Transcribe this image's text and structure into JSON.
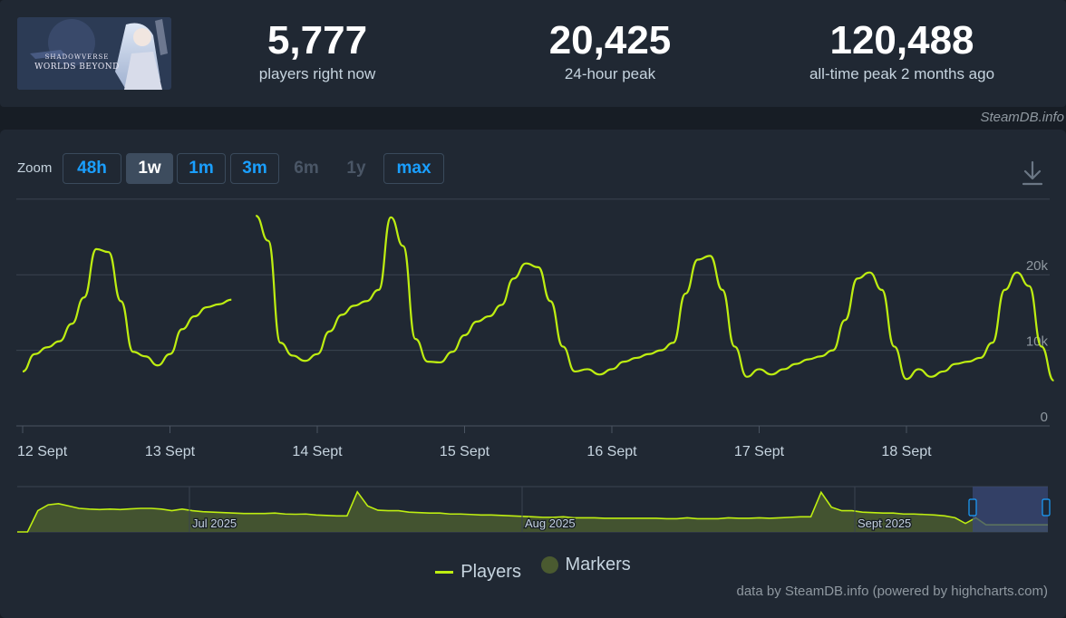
{
  "game": {
    "logo_line1": "SHADOWVERSE",
    "logo_line2": "WORLDS BEYOND"
  },
  "stats": [
    {
      "value": "5,777",
      "label": "players right now"
    },
    {
      "value": "20,425",
      "label": "24-hour peak"
    },
    {
      "value": "120,488",
      "label": "all-time peak 2 months ago"
    }
  ],
  "credit_top": "SteamDB.info",
  "zoom": {
    "label": "Zoom",
    "buttons": [
      {
        "label": "48h",
        "state": "normal"
      },
      {
        "label": "1w",
        "state": "active"
      },
      {
        "label": "1m",
        "state": "normal"
      },
      {
        "label": "3m",
        "state": "normal"
      },
      {
        "label": "6m",
        "state": "disabled"
      },
      {
        "label": "1y",
        "state": "disabled"
      },
      {
        "label": "max",
        "state": "normal"
      }
    ]
  },
  "legend": {
    "players": "Players",
    "markers": "Markers"
  },
  "credit_bottom": "data by SteamDB.info (powered by highcharts.com)",
  "colors": {
    "line": "#beee11",
    "nav_fill": "#4a5a30",
    "grid": "#3a4350",
    "selection": "#3a4878"
  },
  "chart_data": [
    {
      "type": "line",
      "series": [
        {
          "name": "Players",
          "x_days": [
            0,
            0.083,
            0.167,
            0.25,
            0.333,
            0.417,
            0.5,
            0.583,
            0.667,
            0.75,
            0.833,
            0.917,
            1,
            1.083,
            1.167,
            1.25,
            1.333,
            1.417,
            1.5,
            1.583,
            1.667,
            1.75,
            1.833,
            1.917,
            2,
            2.083,
            2.167,
            2.25,
            2.333,
            2.417,
            2.5,
            2.583,
            2.667,
            2.75,
            2.833,
            2.917,
            3,
            3.083,
            3.167,
            3.25,
            3.333,
            3.417,
            3.5,
            3.583,
            3.667,
            3.75,
            3.833,
            3.917,
            4,
            4.083,
            4.167,
            4.25,
            4.333,
            4.417,
            4.5,
            4.583,
            4.667,
            4.75,
            4.833,
            4.917,
            5,
            5.083,
            5.167,
            5.25,
            5.333,
            5.417,
            5.5,
            5.583,
            5.667,
            5.75,
            5.833,
            5.917,
            6,
            6.083,
            6.167,
            6.25,
            6.333,
            6.417,
            6.5,
            6.583,
            6.667,
            6.75,
            6.833,
            6.917,
            7
          ],
          "values": [
            7200,
            9500,
            10400,
            11200,
            13500,
            17000,
            23400,
            23000,
            16500,
            9800,
            9200,
            8000,
            9500,
            12800,
            14500,
            15700,
            16100,
            16700,
            null,
            27800,
            24500,
            11000,
            9300,
            8600,
            9500,
            12500,
            14700,
            15900,
            16500,
            18000,
            27600,
            23800,
            11500,
            8500,
            8400,
            9800,
            12000,
            13800,
            14500,
            16000,
            19500,
            21500,
            21000,
            16500,
            10500,
            7200,
            7500,
            6800,
            7500,
            8500,
            9000,
            9500,
            10000,
            11000,
            17500,
            22000,
            22500,
            18000,
            10500,
            6500,
            7500,
            6800,
            7500,
            8200,
            8800,
            9200,
            10000,
            14000,
            19500,
            20300,
            18000,
            10500,
            6200,
            7500,
            6500,
            7200,
            8200,
            8500,
            9000,
            11000,
            18000,
            20300,
            18500,
            10500,
            6000
          ]
        }
      ],
      "x_ticks": [
        "12 Sept",
        "13 Sept",
        "14 Sept",
        "15 Sept",
        "16 Sept",
        "17 Sept",
        "18 Sept"
      ],
      "y_ticks": [
        "0",
        "10k",
        "20k"
      ],
      "ylim": [
        0,
        30000
      ],
      "xlim_days": [
        0,
        7
      ],
      "grid": true,
      "legend_position": "bottom-center"
    },
    {
      "type": "area",
      "series": [
        {
          "name": "Players",
          "values": [
            0,
            0,
            90,
            115,
            120,
            110,
            100,
            97,
            95,
            97,
            95,
            98,
            100,
            100,
            97,
            90,
            97,
            90,
            86,
            84,
            82,
            80,
            78,
            78,
            78,
            80,
            76,
            75,
            76,
            72,
            70,
            68,
            68,
            170,
            110,
            92,
            90,
            90,
            84,
            82,
            80,
            80,
            76,
            76,
            74,
            72,
            72,
            70,
            68,
            66,
            64,
            62,
            62,
            64,
            60,
            60,
            60,
            58,
            58,
            58,
            58,
            58,
            58,
            56,
            56,
            60,
            56,
            56,
            56,
            60,
            58,
            58,
            60,
            58,
            60,
            62,
            64,
            64,
            168,
            105,
            90,
            90,
            84,
            82,
            80,
            80,
            76,
            76,
            74,
            72,
            68,
            60,
            36,
            60,
            30,
            30,
            30,
            30,
            30,
            30,
            30
          ],
          "value_scale": "relative"
        }
      ],
      "x_ticks": [
        "Jul 2025",
        "Aug 2025",
        "Sept 2025"
      ]
    }
  ]
}
